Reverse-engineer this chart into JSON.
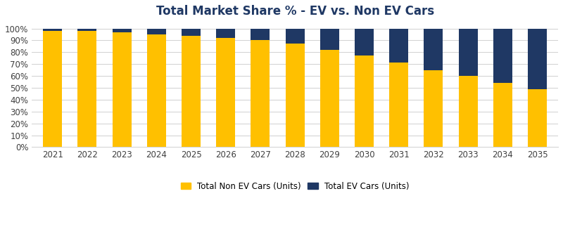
{
  "title": "Total Market Share % - EV vs. Non EV Cars",
  "years": [
    2021,
    2022,
    2023,
    2024,
    2025,
    2026,
    2027,
    2028,
    2029,
    2030,
    2031,
    2032,
    2033,
    2034,
    2035
  ],
  "non_ev_pct": [
    98,
    98,
    97,
    95,
    94,
    92,
    90,
    87,
    82,
    77,
    71,
    65,
    60,
    54,
    49
  ],
  "ev_pct": [
    2,
    2,
    3,
    5,
    6,
    8,
    10,
    13,
    18,
    23,
    29,
    35,
    40,
    46,
    51
  ],
  "non_ev_color": "#FFC000",
  "ev_color": "#1F3864",
  "background_color": "#FFFFFF",
  "legend_labels": [
    "Total Non EV Cars (Units)",
    "Total EV Cars (Units)"
  ],
  "ylim": [
    0,
    105
  ],
  "title_fontsize": 12,
  "tick_fontsize": 8.5,
  "legend_fontsize": 8.5,
  "bar_width": 0.55
}
